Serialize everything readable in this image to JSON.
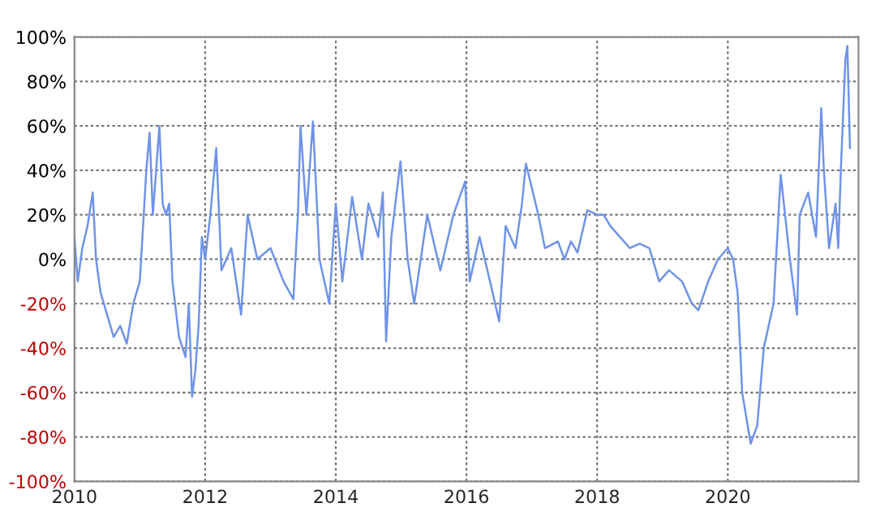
{
  "chart_data": {
    "type": "line",
    "xlim": [
      2010,
      2022
    ],
    "xticks": [
      2010,
      2012,
      2014,
      2016,
      2018,
      2020
    ],
    "ylim": [
      -100,
      100
    ],
    "yticks": [
      {
        "value": -100,
        "label": "-100%"
      },
      {
        "value": -80,
        "label": "-80%"
      },
      {
        "value": -60,
        "label": "-60%"
      },
      {
        "value": -40,
        "label": "-40%"
      },
      {
        "value": -20,
        "label": "-20%"
      },
      {
        "value": 0,
        "label": "0%"
      },
      {
        "value": 20,
        "label": "20%"
      },
      {
        "value": 40,
        "label": "40%"
      },
      {
        "value": 60,
        "label": "60%"
      },
      {
        "value": 80,
        "label": "80%"
      },
      {
        "value": 100,
        "label": "100%"
      }
    ],
    "grid": true,
    "marker": "none",
    "line_style": "solid",
    "series": [
      {
        "color": "#6f93e8",
        "x": [
          2010.0,
          2010.05,
          2010.12,
          2010.2,
          2010.28,
          2010.33,
          2010.4,
          2010.5,
          2010.6,
          2010.7,
          2010.8,
          2010.9,
          2011.0,
          2011.1,
          2011.15,
          2011.2,
          2011.3,
          2011.35,
          2011.4,
          2011.45,
          2011.5,
          2011.6,
          2011.7,
          2011.75,
          2011.8,
          2011.85,
          2011.9,
          2011.95,
          2012.0,
          2012.08,
          2012.17,
          2012.25,
          2012.4,
          2012.55,
          2012.65,
          2012.8,
          2013.0,
          2013.2,
          2013.35,
          2013.42,
          2013.46,
          2013.55,
          2013.65,
          2013.75,
          2013.9,
          2014.0,
          2014.1,
          2014.25,
          2014.4,
          2014.5,
          2014.65,
          2014.72,
          2014.77,
          2014.85,
          2014.99,
          2015.1,
          2015.2,
          2015.4,
          2015.6,
          2015.8,
          2015.98,
          2016.05,
          2016.2,
          2016.4,
          2016.5,
          2016.6,
          2016.75,
          2016.85,
          2016.91,
          2017.1,
          2017.2,
          2017.4,
          2017.5,
          2017.6,
          2017.7,
          2017.85,
          2018.0,
          2018.1,
          2018.2,
          2018.35,
          2018.5,
          2018.65,
          2018.8,
          2018.95,
          2019.1,
          2019.3,
          2019.45,
          2019.55,
          2019.7,
          2019.85,
          2020.0,
          2020.08,
          2020.15,
          2020.22,
          2020.35,
          2020.45,
          2020.55,
          2020.7,
          2020.81,
          2020.95,
          2021.06,
          2021.1,
          2021.23,
          2021.35,
          2021.43,
          2021.47,
          2021.55,
          2021.65,
          2021.69,
          2021.73,
          2021.8,
          2021.83,
          2021.87
        ],
        "values": [
          10,
          -10,
          5,
          15,
          30,
          0,
          -15,
          -25,
          -35,
          -30,
          -38,
          -20,
          -10,
          40,
          57,
          20,
          60,
          25,
          20,
          25,
          -10,
          -35,
          -44,
          -20,
          -62,
          -50,
          -30,
          10,
          0,
          20,
          50,
          -5,
          5,
          -25,
          20,
          0,
          5,
          -10,
          -18,
          20,
          60,
          20,
          62,
          0,
          -20,
          25,
          -10,
          28,
          0,
          25,
          10,
          30,
          -37,
          10,
          44,
          0,
          -20,
          20,
          -5,
          20,
          35,
          -10,
          10,
          -15,
          -28,
          15,
          5,
          25,
          43,
          20,
          5,
          8,
          0,
          8,
          3,
          22,
          20,
          20,
          15,
          10,
          5,
          7,
          5,
          -10,
          -5,
          -10,
          -20,
          -23,
          -10,
          0,
          5,
          0,
          -15,
          -60,
          -83,
          -75,
          -40,
          -20,
          38,
          0,
          -25,
          20,
          30,
          10,
          68,
          40,
          5,
          25,
          5,
          40,
          90,
          96,
          50
        ]
      }
    ]
  }
}
